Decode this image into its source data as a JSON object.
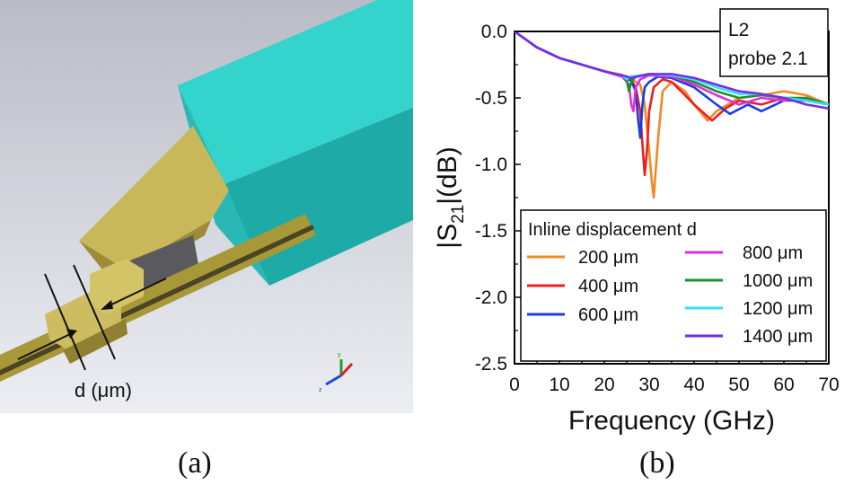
{
  "panel_a": {
    "dimension_label": "d (μm)",
    "axis_labels": {
      "y": "y",
      "z": "z"
    },
    "caption": "(a)"
  },
  "panel_b": {
    "caption": "(b)"
  },
  "colors": {
    "background_gradient_top": "#b9bcc6",
    "background_gradient_bottom": "#eceef3",
    "block": "#2ec4c0",
    "probe": "#b5a649"
  },
  "chart_data": {
    "type": "line",
    "title": "",
    "xlabel": "Frequency (GHz)",
    "ylabel_prefix": "|S",
    "ylabel_sub": "21",
    "ylabel_suffix": "|(dB)",
    "xlim": [
      0,
      70
    ],
    "ylim": [
      -2.5,
      0.0
    ],
    "xticks": [
      0,
      10,
      20,
      30,
      40,
      50,
      60,
      70
    ],
    "yticks": [
      0.0,
      -0.5,
      -1.0,
      -1.5,
      -2.0,
      -2.5
    ],
    "ytick_labels": [
      "0.0",
      "-0.5",
      "-1.0",
      "-1.5",
      "-2.0",
      "-2.5"
    ],
    "annotation": [
      "L2",
      "probe 2.1"
    ],
    "legend_title": "Inline displacement d",
    "legend_position": "bottom-right",
    "series": [
      {
        "name": "200 μm",
        "color": "#f08a24",
        "x": [
          0,
          5,
          10,
          15,
          20,
          24,
          26,
          28,
          29,
          30,
          30.5,
          31,
          32,
          33,
          35,
          38,
          40,
          43,
          45,
          50,
          55,
          60,
          65,
          70
        ],
        "y": [
          0,
          -0.12,
          -0.2,
          -0.25,
          -0.3,
          -0.34,
          -0.36,
          -0.4,
          -0.55,
          -0.9,
          -1.1,
          -1.25,
          -0.8,
          -0.45,
          -0.38,
          -0.45,
          -0.55,
          -0.67,
          -0.6,
          -0.5,
          -0.48,
          -0.45,
          -0.48,
          -0.55
        ]
      },
      {
        "name": "400 μm",
        "color": "#e8201f",
        "x": [
          0,
          5,
          10,
          15,
          20,
          24,
          26,
          27,
          28,
          28.5,
          29,
          29.5,
          30,
          31,
          33,
          35,
          38,
          40,
          44,
          47,
          50,
          55,
          60,
          65,
          70
        ],
        "y": [
          0,
          -0.12,
          -0.2,
          -0.25,
          -0.3,
          -0.34,
          -0.37,
          -0.42,
          -0.6,
          -0.85,
          -1.08,
          -0.9,
          -0.6,
          -0.42,
          -0.36,
          -0.38,
          -0.48,
          -0.55,
          -0.67,
          -0.58,
          -0.52,
          -0.55,
          -0.5,
          -0.52,
          -0.55
        ]
      },
      {
        "name": "600 μm",
        "color": "#1a3de0",
        "x": [
          0,
          5,
          10,
          15,
          20,
          24,
          26,
          27,
          27.5,
          28,
          28.5,
          29,
          30,
          32,
          35,
          40,
          45,
          48,
          52,
          55,
          60,
          65,
          70
        ],
        "y": [
          0,
          -0.12,
          -0.2,
          -0.25,
          -0.3,
          -0.34,
          -0.37,
          -0.45,
          -0.65,
          -0.8,
          -0.55,
          -0.42,
          -0.38,
          -0.34,
          -0.35,
          -0.42,
          -0.55,
          -0.62,
          -0.55,
          -0.6,
          -0.52,
          -0.52,
          -0.55
        ]
      },
      {
        "name": "800 μm",
        "color": "#e22ce0",
        "x": [
          0,
          5,
          10,
          15,
          20,
          24,
          25.5,
          26,
          26.5,
          27,
          28,
          30,
          35,
          40,
          45,
          50,
          55,
          60,
          65,
          70
        ],
        "y": [
          0,
          -0.12,
          -0.2,
          -0.25,
          -0.3,
          -0.34,
          -0.4,
          -0.55,
          -0.6,
          -0.42,
          -0.36,
          -0.33,
          -0.34,
          -0.4,
          -0.48,
          -0.55,
          -0.5,
          -0.52,
          -0.5,
          -0.55
        ]
      },
      {
        "name": "1000 μm",
        "color": "#1f8f2c",
        "x": [
          0,
          5,
          10,
          15,
          20,
          24,
          25,
          25.5,
          26,
          27,
          30,
          35,
          40,
          45,
          50,
          55,
          60,
          65,
          70
        ],
        "y": [
          0,
          -0.12,
          -0.2,
          -0.25,
          -0.3,
          -0.33,
          -0.37,
          -0.45,
          -0.38,
          -0.34,
          -0.32,
          -0.33,
          -0.38,
          -0.45,
          -0.5,
          -0.48,
          -0.5,
          -0.5,
          -0.55
        ]
      },
      {
        "name": "1200 μm",
        "color": "#2ee6f0",
        "x": [
          0,
          5,
          10,
          15,
          20,
          24,
          25,
          26,
          30,
          35,
          40,
          45,
          50,
          55,
          60,
          65,
          70
        ],
        "y": [
          0,
          -0.12,
          -0.2,
          -0.25,
          -0.3,
          -0.33,
          -0.36,
          -0.34,
          -0.32,
          -0.33,
          -0.36,
          -0.42,
          -0.47,
          -0.47,
          -0.5,
          -0.52,
          -0.55
        ]
      },
      {
        "name": "1400 μm",
        "color": "#7a2be8",
        "x": [
          0,
          5,
          10,
          15,
          20,
          24,
          26,
          30,
          35,
          40,
          45,
          50,
          55,
          60,
          65,
          70
        ],
        "y": [
          0,
          -0.12,
          -0.2,
          -0.25,
          -0.3,
          -0.33,
          -0.35,
          -0.32,
          -0.32,
          -0.35,
          -0.4,
          -0.45,
          -0.47,
          -0.5,
          -0.55,
          -0.58
        ]
      }
    ]
  }
}
